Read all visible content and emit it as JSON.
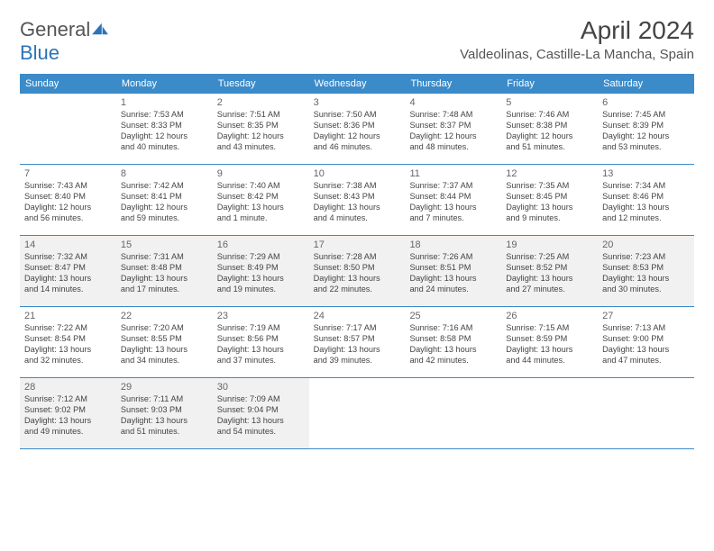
{
  "logo": {
    "text1": "General",
    "text2": "Blue",
    "text1_color": "#666666",
    "text2_color": "#2a73b8",
    "icon_color": "#2a73b8"
  },
  "title": "April 2024",
  "location": "Valdeolinas, Castille-La Mancha, Spain",
  "colors": {
    "header_bg": "#3b8bc9",
    "header_text": "#ffffff",
    "rule": "#3b8bc9",
    "shaded_bg": "#f1f1f1",
    "text": "#444444"
  },
  "daysOfWeek": [
    "Sunday",
    "Monday",
    "Tuesday",
    "Wednesday",
    "Thursday",
    "Friday",
    "Saturday"
  ],
  "weeks": [
    [
      {
        "num": "",
        "lines": []
      },
      {
        "num": "1",
        "lines": [
          "Sunrise: 7:53 AM",
          "Sunset: 8:33 PM",
          "Daylight: 12 hours",
          "and 40 minutes."
        ]
      },
      {
        "num": "2",
        "lines": [
          "Sunrise: 7:51 AM",
          "Sunset: 8:35 PM",
          "Daylight: 12 hours",
          "and 43 minutes."
        ]
      },
      {
        "num": "3",
        "lines": [
          "Sunrise: 7:50 AM",
          "Sunset: 8:36 PM",
          "Daylight: 12 hours",
          "and 46 minutes."
        ]
      },
      {
        "num": "4",
        "lines": [
          "Sunrise: 7:48 AM",
          "Sunset: 8:37 PM",
          "Daylight: 12 hours",
          "and 48 minutes."
        ]
      },
      {
        "num": "5",
        "lines": [
          "Sunrise: 7:46 AM",
          "Sunset: 8:38 PM",
          "Daylight: 12 hours",
          "and 51 minutes."
        ]
      },
      {
        "num": "6",
        "lines": [
          "Sunrise: 7:45 AM",
          "Sunset: 8:39 PM",
          "Daylight: 12 hours",
          "and 53 minutes."
        ]
      }
    ],
    [
      {
        "num": "7",
        "lines": [
          "Sunrise: 7:43 AM",
          "Sunset: 8:40 PM",
          "Daylight: 12 hours",
          "and 56 minutes."
        ]
      },
      {
        "num": "8",
        "lines": [
          "Sunrise: 7:42 AM",
          "Sunset: 8:41 PM",
          "Daylight: 12 hours",
          "and 59 minutes."
        ]
      },
      {
        "num": "9",
        "lines": [
          "Sunrise: 7:40 AM",
          "Sunset: 8:42 PM",
          "Daylight: 13 hours",
          "and 1 minute."
        ]
      },
      {
        "num": "10",
        "lines": [
          "Sunrise: 7:38 AM",
          "Sunset: 8:43 PM",
          "Daylight: 13 hours",
          "and 4 minutes."
        ]
      },
      {
        "num": "11",
        "lines": [
          "Sunrise: 7:37 AM",
          "Sunset: 8:44 PM",
          "Daylight: 13 hours",
          "and 7 minutes."
        ]
      },
      {
        "num": "12",
        "lines": [
          "Sunrise: 7:35 AM",
          "Sunset: 8:45 PM",
          "Daylight: 13 hours",
          "and 9 minutes."
        ]
      },
      {
        "num": "13",
        "lines": [
          "Sunrise: 7:34 AM",
          "Sunset: 8:46 PM",
          "Daylight: 13 hours",
          "and 12 minutes."
        ]
      }
    ],
    [
      {
        "num": "14",
        "lines": [
          "Sunrise: 7:32 AM",
          "Sunset: 8:47 PM",
          "Daylight: 13 hours",
          "and 14 minutes."
        ]
      },
      {
        "num": "15",
        "lines": [
          "Sunrise: 7:31 AM",
          "Sunset: 8:48 PM",
          "Daylight: 13 hours",
          "and 17 minutes."
        ]
      },
      {
        "num": "16",
        "lines": [
          "Sunrise: 7:29 AM",
          "Sunset: 8:49 PM",
          "Daylight: 13 hours",
          "and 19 minutes."
        ]
      },
      {
        "num": "17",
        "lines": [
          "Sunrise: 7:28 AM",
          "Sunset: 8:50 PM",
          "Daylight: 13 hours",
          "and 22 minutes."
        ]
      },
      {
        "num": "18",
        "lines": [
          "Sunrise: 7:26 AM",
          "Sunset: 8:51 PM",
          "Daylight: 13 hours",
          "and 24 minutes."
        ]
      },
      {
        "num": "19",
        "lines": [
          "Sunrise: 7:25 AM",
          "Sunset: 8:52 PM",
          "Daylight: 13 hours",
          "and 27 minutes."
        ]
      },
      {
        "num": "20",
        "lines": [
          "Sunrise: 7:23 AM",
          "Sunset: 8:53 PM",
          "Daylight: 13 hours",
          "and 30 minutes."
        ]
      }
    ],
    [
      {
        "num": "21",
        "lines": [
          "Sunrise: 7:22 AM",
          "Sunset: 8:54 PM",
          "Daylight: 13 hours",
          "and 32 minutes."
        ]
      },
      {
        "num": "22",
        "lines": [
          "Sunrise: 7:20 AM",
          "Sunset: 8:55 PM",
          "Daylight: 13 hours",
          "and 34 minutes."
        ]
      },
      {
        "num": "23",
        "lines": [
          "Sunrise: 7:19 AM",
          "Sunset: 8:56 PM",
          "Daylight: 13 hours",
          "and 37 minutes."
        ]
      },
      {
        "num": "24",
        "lines": [
          "Sunrise: 7:17 AM",
          "Sunset: 8:57 PM",
          "Daylight: 13 hours",
          "and 39 minutes."
        ]
      },
      {
        "num": "25",
        "lines": [
          "Sunrise: 7:16 AM",
          "Sunset: 8:58 PM",
          "Daylight: 13 hours",
          "and 42 minutes."
        ]
      },
      {
        "num": "26",
        "lines": [
          "Sunrise: 7:15 AM",
          "Sunset: 8:59 PM",
          "Daylight: 13 hours",
          "and 44 minutes."
        ]
      },
      {
        "num": "27",
        "lines": [
          "Sunrise: 7:13 AM",
          "Sunset: 9:00 PM",
          "Daylight: 13 hours",
          "and 47 minutes."
        ]
      }
    ],
    [
      {
        "num": "28",
        "lines": [
          "Sunrise: 7:12 AM",
          "Sunset: 9:02 PM",
          "Daylight: 13 hours",
          "and 49 minutes."
        ]
      },
      {
        "num": "29",
        "lines": [
          "Sunrise: 7:11 AM",
          "Sunset: 9:03 PM",
          "Daylight: 13 hours",
          "and 51 minutes."
        ]
      },
      {
        "num": "30",
        "lines": [
          "Sunrise: 7:09 AM",
          "Sunset: 9:04 PM",
          "Daylight: 13 hours",
          "and 54 minutes."
        ]
      },
      {
        "num": "",
        "lines": []
      },
      {
        "num": "",
        "lines": []
      },
      {
        "num": "",
        "lines": []
      },
      {
        "num": "",
        "lines": []
      }
    ]
  ],
  "shadedWeeks": [
    2,
    4
  ]
}
